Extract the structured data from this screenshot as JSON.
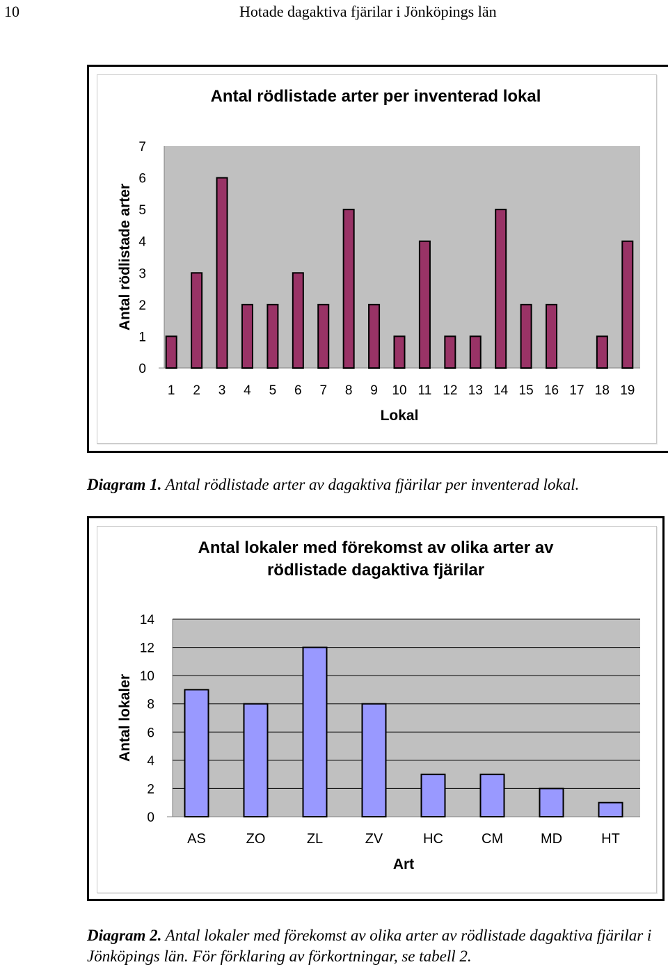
{
  "header": {
    "page_number": "10",
    "running_title": "Hotade dagaktiva fjärilar i Jönköpings län"
  },
  "chart_data": [
    {
      "type": "bar",
      "title": "Antal rödlistade arter per inventerad lokal",
      "xlabel": "Lokal",
      "ylabel": "Antal rödlistade arter",
      "categories": [
        "1",
        "2",
        "3",
        "4",
        "5",
        "6",
        "7",
        "8",
        "9",
        "10",
        "11",
        "12",
        "13",
        "14",
        "15",
        "16",
        "17",
        "18",
        "19"
      ],
      "values": [
        1,
        3,
        6,
        2,
        2,
        3,
        2,
        5,
        2,
        1,
        4,
        1,
        1,
        5,
        2,
        2,
        0,
        1,
        4
      ],
      "ylim": [
        0,
        7
      ],
      "yticks": [
        "0",
        "1",
        "2",
        "3",
        "4",
        "5",
        "6",
        "7"
      ],
      "grid": false,
      "colors": {
        "bar": "#993366",
        "plot_bg": "#c0c0c0"
      }
    },
    {
      "type": "bar",
      "title_lines": [
        "Antal lokaler med förekomst av olika arter av",
        "rödlistade dagaktiva fjärilar"
      ],
      "xlabel": "Art",
      "ylabel": "Antal lokaler",
      "categories": [
        "AS",
        "ZO",
        "ZL",
        "ZV",
        "HC",
        "CM",
        "MD",
        "HT"
      ],
      "values": [
        9,
        8,
        12,
        8,
        3,
        3,
        2,
        1
      ],
      "ylim": [
        0,
        14
      ],
      "yticks": [
        "0",
        "2",
        "4",
        "6",
        "8",
        "10",
        "12",
        "14"
      ],
      "grid": true,
      "colors": {
        "bar": "#9999ff",
        "plot_bg": "#c0c0c0"
      }
    }
  ],
  "captions": [
    {
      "label": "Diagram 1.",
      "text": " Antal rödlistade arter av dagaktiva fjärilar per inventerad lokal."
    },
    {
      "label": "Diagram 2.",
      "text": " Antal lokaler med förekomst av olika arter av rödlistade dagaktiva fjärilar i Jönköpings län. För förklaring av förkortningar, se tabell 2."
    }
  ]
}
